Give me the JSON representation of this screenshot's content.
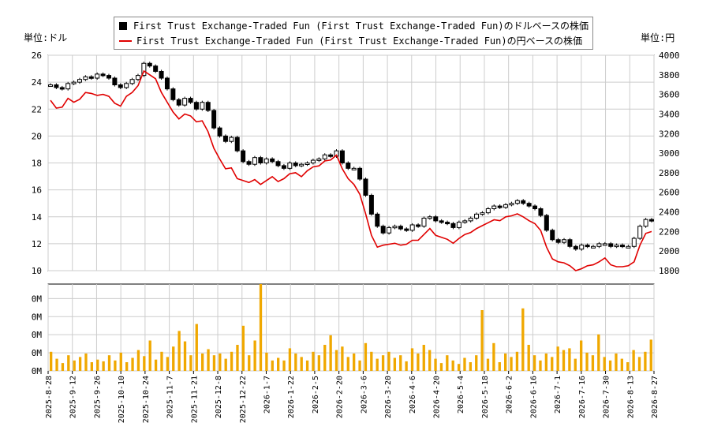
{
  "chart_data": [
    {
      "type": "line",
      "title": "",
      "left_unit_label": "単位:ドル",
      "right_unit_label": "単位:円",
      "legend_placement": "top-center",
      "grid": true,
      "y_left_range": [
        10,
        26
      ],
      "y_left_ticks": [
        "10",
        "12",
        "14",
        "16",
        "18",
        "20",
        "22",
        "24",
        "26"
      ],
      "y_right_range": [
        1800,
        4000
      ],
      "y_right_ticks": [
        "1800",
        "2000",
        "2200",
        "2400",
        "2600",
        "2800",
        "3000",
        "3200",
        "3400",
        "3600",
        "3800",
        "4000"
      ],
      "x_ticks": [
        "2025-8-28",
        "2025-9-12",
        "2025-9-26",
        "2025-10-10",
        "2025-10-24",
        "2025-11-7",
        "2025-11-21",
        "2025-12-8",
        "2025-12-22",
        "2026-1-7",
        "2026-1-22",
        "2026-2-5",
        "2026-2-20",
        "2026-3-6",
        "2026-3-20",
        "2026-4-6",
        "2026-4-20",
        "2026-5-4",
        "2026-5-18",
        "2026-6-2",
        "2026-6-16",
        "2026-7-1",
        "2026-7-16",
        "2026-7-30",
        "2026-8-13",
        "2026-8-27"
      ],
      "series": [
        {
          "name": "First Trust Exchange-Traded Fun (First Trust Exchange-Traded Fun)のドルベースの株価",
          "color": "#000000",
          "style": "candlestick",
          "values": [
            23.8,
            23.6,
            23.5,
            23.9,
            24.0,
            24.2,
            24.4,
            24.3,
            24.6,
            24.5,
            24.3,
            23.8,
            23.6,
            23.9,
            24.2,
            24.5,
            25.4,
            25.2,
            24.8,
            24.3,
            23.5,
            22.7,
            22.3,
            22.8,
            22.5,
            22.0,
            22.5,
            21.9,
            20.6,
            20.0,
            19.6,
            19.9,
            18.9,
            18.1,
            17.9,
            18.4,
            18.0,
            18.3,
            18.1,
            17.8,
            17.6,
            18.0,
            17.8,
            17.9,
            18.0,
            18.2,
            18.3,
            18.6,
            18.5,
            18.9,
            18.0,
            17.6,
            17.6,
            16.8,
            15.6,
            14.2,
            13.3,
            12.8,
            13.2,
            13.3,
            13.1,
            13.0,
            13.4,
            13.3,
            13.9,
            14.0,
            13.7,
            13.6,
            13.5,
            13.2,
            13.6,
            13.7,
            13.9,
            14.2,
            14.3,
            14.6,
            14.8,
            14.7,
            14.9,
            15.0,
            15.2,
            15.0,
            14.8,
            14.6,
            14.1,
            13.0,
            12.3,
            12.1,
            12.3,
            11.8,
            11.6,
            11.9,
            11.8,
            11.8,
            12.0,
            12.0,
            11.8,
            11.9,
            11.8,
            11.8,
            12.4,
            13.3,
            13.8,
            13.7
          ]
        },
        {
          "name": "First Trust Exchange-Traded Fun (First Trust Exchange-Traded Fun)の円ベースの株価",
          "color": "#e00000",
          "style": "line",
          "values": [
            3540,
            3460,
            3470,
            3560,
            3520,
            3550,
            3620,
            3610,
            3590,
            3600,
            3580,
            3510,
            3480,
            3580,
            3620,
            3690,
            3840,
            3800,
            3760,
            3620,
            3520,
            3420,
            3350,
            3400,
            3380,
            3320,
            3330,
            3220,
            3050,
            2940,
            2840,
            2850,
            2740,
            2720,
            2700,
            2730,
            2680,
            2720,
            2760,
            2710,
            2740,
            2790,
            2800,
            2760,
            2820,
            2860,
            2870,
            2920,
            2930,
            2980,
            2840,
            2740,
            2680,
            2580,
            2380,
            2160,
            2040,
            2060,
            2070,
            2080,
            2060,
            2070,
            2110,
            2110,
            2170,
            2230,
            2160,
            2140,
            2120,
            2080,
            2130,
            2170,
            2190,
            2230,
            2260,
            2290,
            2320,
            2310,
            2350,
            2360,
            2380,
            2350,
            2310,
            2280,
            2210,
            2040,
            1920,
            1890,
            1880,
            1850,
            1800,
            1820,
            1850,
            1860,
            1890,
            1930,
            1860,
            1840,
            1840,
            1850,
            1890,
            2060,
            2180,
            2200
          ]
        }
      ],
      "volume": {
        "y_ticks": [
          "0M",
          "0M",
          "0M",
          "0M",
          "0M"
        ],
        "color": "#f0a800",
        "values": [
          0.22,
          0.14,
          0.09,
          0.18,
          0.12,
          0.16,
          0.2,
          0.1,
          0.13,
          0.11,
          0.18,
          0.12,
          0.21,
          0.1,
          0.15,
          0.24,
          0.17,
          0.35,
          0.13,
          0.22,
          0.16,
          0.28,
          0.46,
          0.34,
          0.18,
          0.54,
          0.2,
          0.25,
          0.18,
          0.2,
          0.14,
          0.22,
          0.3,
          0.52,
          0.18,
          0.35,
          1.0,
          0.21,
          0.12,
          0.15,
          0.12,
          0.26,
          0.2,
          0.16,
          0.12,
          0.22,
          0.18,
          0.3,
          0.41,
          0.24,
          0.28,
          0.16,
          0.2,
          0.12,
          0.32,
          0.22,
          0.14,
          0.18,
          0.22,
          0.15,
          0.18,
          0.11,
          0.26,
          0.2,
          0.3,
          0.24,
          0.14,
          0.09,
          0.18,
          0.12,
          0.08,
          0.15,
          0.1,
          0.18,
          0.7,
          0.14,
          0.32,
          0.1,
          0.2,
          0.16,
          0.22,
          0.72,
          0.3,
          0.18,
          0.12,
          0.2,
          0.16,
          0.28,
          0.24,
          0.26,
          0.14,
          0.35,
          0.21,
          0.18,
          0.42,
          0.16,
          0.12,
          0.2,
          0.14,
          0.1,
          0.24,
          0.16,
          0.22,
          0.36
        ]
      }
    }
  ]
}
